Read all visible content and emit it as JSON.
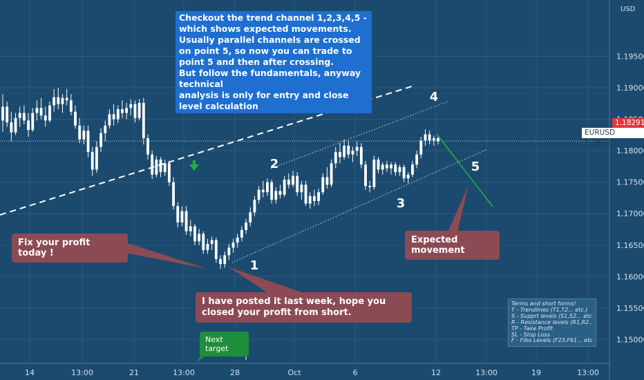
{
  "chart_data": {
    "type": "candlestick",
    "currency": "USD",
    "symbol": "EURUSD",
    "y_ticks": [
      1.195,
      1.19,
      1.185,
      1.18,
      1.175,
      1.17,
      1.165,
      1.16,
      1.155,
      1.15
    ],
    "ylim": [
      1.1462,
      1.20395
    ],
    "x_ticks": [
      "14",
      "13:00",
      "21",
      "13:00",
      "28",
      "Oct",
      "6",
      "12",
      "13:00",
      "19",
      "13:00"
    ],
    "last_price": "1.18152",
    "high_marker": "1.18291",
    "candles": [
      [
        1.1848,
        1.189,
        1.183,
        1.187
      ],
      [
        1.187,
        1.1878,
        1.1838,
        1.1845
      ],
      [
        1.1845,
        1.1862,
        1.1815,
        1.1829
      ],
      [
        1.1829,
        1.186,
        1.1825,
        1.1852
      ],
      [
        1.1852,
        1.187,
        1.1838,
        1.186
      ],
      [
        1.186,
        1.1872,
        1.1842,
        1.1848
      ],
      [
        1.1848,
        1.186,
        1.1822,
        1.1833
      ],
      [
        1.1833,
        1.1868,
        1.183,
        1.186
      ],
      [
        1.186,
        1.188,
        1.1848,
        1.1868
      ],
      [
        1.1868,
        1.1884,
        1.185,
        1.1856
      ],
      [
        1.1856,
        1.187,
        1.1838,
        1.1848
      ],
      [
        1.1848,
        1.1878,
        1.1845,
        1.1872
      ],
      [
        1.1872,
        1.1898,
        1.1862,
        1.1885
      ],
      [
        1.1885,
        1.19,
        1.1866,
        1.1874
      ],
      [
        1.1874,
        1.189,
        1.186,
        1.1884
      ],
      [
        1.1884,
        1.1898,
        1.1872,
        1.188
      ],
      [
        1.188,
        1.189,
        1.1856,
        1.1862
      ],
      [
        1.1862,
        1.1872,
        1.1835,
        1.184
      ],
      [
        1.184,
        1.1852,
        1.1812,
        1.1818
      ],
      [
        1.1818,
        1.184,
        1.181,
        1.1832
      ],
      [
        1.1832,
        1.184,
        1.179,
        1.1798
      ],
      [
        1.1798,
        1.1806,
        1.176,
        1.177
      ],
      [
        1.177,
        1.1815,
        1.1765,
        1.1806
      ],
      [
        1.1806,
        1.1836,
        1.1798,
        1.1828
      ],
      [
        1.1828,
        1.1848,
        1.1815,
        1.184
      ],
      [
        1.184,
        1.1866,
        1.1835,
        1.1858
      ],
      [
        1.1858,
        1.1874,
        1.184,
        1.185
      ],
      [
        1.185,
        1.1872,
        1.1844,
        1.1866
      ],
      [
        1.1866,
        1.188,
        1.1852,
        1.186
      ],
      [
        1.186,
        1.1876,
        1.185,
        1.1868
      ],
      [
        1.1868,
        1.1882,
        1.1856,
        1.1874
      ],
      [
        1.1874,
        1.188,
        1.1845,
        1.1852
      ],
      [
        1.1852,
        1.1882,
        1.1848,
        1.1876
      ],
      [
        1.1876,
        1.1884,
        1.181,
        1.182
      ],
      [
        1.182,
        1.1826,
        1.1786,
        1.1794
      ],
      [
        1.1794,
        1.18,
        1.1755,
        1.1762
      ],
      [
        1.1762,
        1.1792,
        1.1758,
        1.1786
      ],
      [
        1.1786,
        1.179,
        1.1758,
        1.1766
      ],
      [
        1.1766,
        1.1786,
        1.176,
        1.178
      ],
      [
        1.178,
        1.1784,
        1.1744,
        1.175
      ],
      [
        1.175,
        1.1758,
        1.1706,
        1.1712
      ],
      [
        1.1712,
        1.1718,
        1.1678,
        1.1686
      ],
      [
        1.1686,
        1.1712,
        1.168,
        1.1704
      ],
      [
        1.1704,
        1.1712,
        1.1666,
        1.1672
      ],
      [
        1.1672,
        1.169,
        1.1664,
        1.168
      ],
      [
        1.168,
        1.1684,
        1.165,
        1.1656
      ],
      [
        1.1656,
        1.1676,
        1.165,
        1.1668
      ],
      [
        1.1668,
        1.1672,
        1.1636,
        1.1642
      ],
      [
        1.1642,
        1.166,
        1.1636,
        1.1652
      ],
      [
        1.1652,
        1.1664,
        1.1642,
        1.1658
      ],
      [
        1.1658,
        1.1662,
        1.1622,
        1.1628
      ],
      [
        1.1628,
        1.1634,
        1.1612,
        1.162
      ],
      [
        1.162,
        1.164,
        1.1614,
        1.1634
      ],
      [
        1.1634,
        1.1652,
        1.1626,
        1.1646
      ],
      [
        1.1646,
        1.166,
        1.1638,
        1.1654
      ],
      [
        1.1654,
        1.1668,
        1.1646,
        1.1662
      ],
      [
        1.1662,
        1.168,
        1.1656,
        1.1674
      ],
      [
        1.1674,
        1.1692,
        1.1668,
        1.1686
      ],
      [
        1.1686,
        1.171,
        1.168,
        1.1702
      ],
      [
        1.1702,
        1.1728,
        1.1696,
        1.1722
      ],
      [
        1.1722,
        1.1744,
        1.1716,
        1.1738
      ],
      [
        1.1738,
        1.1752,
        1.1726,
        1.1734
      ],
      [
        1.1734,
        1.1756,
        1.1728,
        1.175
      ],
      [
        1.175,
        1.1754,
        1.1716,
        1.1722
      ],
      [
        1.1722,
        1.1742,
        1.1716,
        1.1736
      ],
      [
        1.1736,
        1.1746,
        1.1724,
        1.173
      ],
      [
        1.173,
        1.176,
        1.1726,
        1.1754
      ],
      [
        1.1754,
        1.1764,
        1.174,
        1.1746
      ],
      [
        1.1746,
        1.1768,
        1.1742,
        1.176
      ],
      [
        1.176,
        1.1766,
        1.1728,
        1.1734
      ],
      [
        1.1734,
        1.1752,
        1.1722,
        1.1746
      ],
      [
        1.1746,
        1.1752,
        1.1712,
        1.1716
      ],
      [
        1.1716,
        1.1734,
        1.1708,
        1.1728
      ],
      [
        1.1728,
        1.1738,
        1.1712,
        1.172
      ],
      [
        1.172,
        1.174,
        1.1714,
        1.1734
      ],
      [
        1.1734,
        1.1764,
        1.173,
        1.1758
      ],
      [
        1.1758,
        1.1774,
        1.174,
        1.1746
      ],
      [
        1.1746,
        1.1786,
        1.1742,
        1.178
      ],
      [
        1.178,
        1.1806,
        1.1772,
        1.1798
      ],
      [
        1.1798,
        1.1812,
        1.178,
        1.179
      ],
      [
        1.179,
        1.1818,
        1.1786,
        1.1808
      ],
      [
        1.1808,
        1.1816,
        1.1788,
        1.1794
      ],
      [
        1.1794,
        1.1806,
        1.1782,
        1.18
      ],
      [
        1.18,
        1.1814,
        1.1792,
        1.1806
      ],
      [
        1.1806,
        1.1812,
        1.1772,
        1.1778
      ],
      [
        1.1778,
        1.1784,
        1.1738,
        1.1744
      ],
      [
        1.1744,
        1.1752,
        1.1734,
        1.1742
      ],
      [
        1.1742,
        1.1792,
        1.1738,
        1.1786
      ],
      [
        1.1786,
        1.179,
        1.1764,
        1.177
      ],
      [
        1.177,
        1.1782,
        1.1762,
        1.1778
      ],
      [
        1.1778,
        1.1784,
        1.1766,
        1.1772
      ],
      [
        1.1772,
        1.1782,
        1.1762,
        1.1778
      ],
      [
        1.1778,
        1.1782,
        1.176,
        1.1766
      ],
      [
        1.1766,
        1.1778,
        1.176,
        1.1774
      ],
      [
        1.1774,
        1.1778,
        1.175,
        1.1756
      ],
      [
        1.1756,
        1.1766,
        1.1748,
        1.1762
      ],
      [
        1.1762,
        1.1784,
        1.1758,
        1.1778
      ],
      [
        1.1778,
        1.18,
        1.1772,
        1.1794
      ],
      [
        1.1794,
        1.1822,
        1.1788,
        1.1816
      ],
      [
        1.1816,
        1.1834,
        1.1808,
        1.1826
      ],
      [
        1.1826,
        1.1832,
        1.181,
        1.1816
      ],
      [
        1.1816,
        1.1824,
        1.1808,
        1.182
      ],
      [
        1.182,
        1.1824,
        1.181,
        1.1815
      ]
    ]
  },
  "annotations": {
    "note_top": "Checkout the trend channel 1,2,3,4,5 - which shows expected movements. Usually parallel channels are crossed on point 5, so now you can trade to point 5 and then after crossing.\n But follow the fundamentals, anyway technical\n analysis is only for entry and close level calculation",
    "fix_profit": "Fix your profit today !",
    "posted_last_week": "I have posted it last week, hope you closed your profit from short.",
    "expected_movement": "Expected movement",
    "next_target": "Next target",
    "wave_points": [
      "1",
      "2",
      "3",
      "4",
      "5"
    ]
  },
  "legend": {
    "title": "Terms and short forms!",
    "lines": [
      "T - Trendlines (T1,T2... etc.)",
      "S - Supprt levels (S1,S2... etc.)",
      "R - Resistance levels (R1,R2... etc.)",
      "TP - Take Profit",
      "SL - Stop Loss",
      "F - Fibo Levels (F23,F61... etc.)"
    ]
  },
  "colors": {
    "background": "#1b4a6e",
    "grid": "#2b5b80",
    "candle": "#ffffff",
    "high_marker_bg": "#e2363b",
    "last_price_bg": "#ffffff",
    "expected_line": "#1db53a",
    "arrow": "#1db53a",
    "note_blue": "#1e6fd0",
    "note_red": "#8c4a55",
    "note_green": "#1f8e3a"
  }
}
